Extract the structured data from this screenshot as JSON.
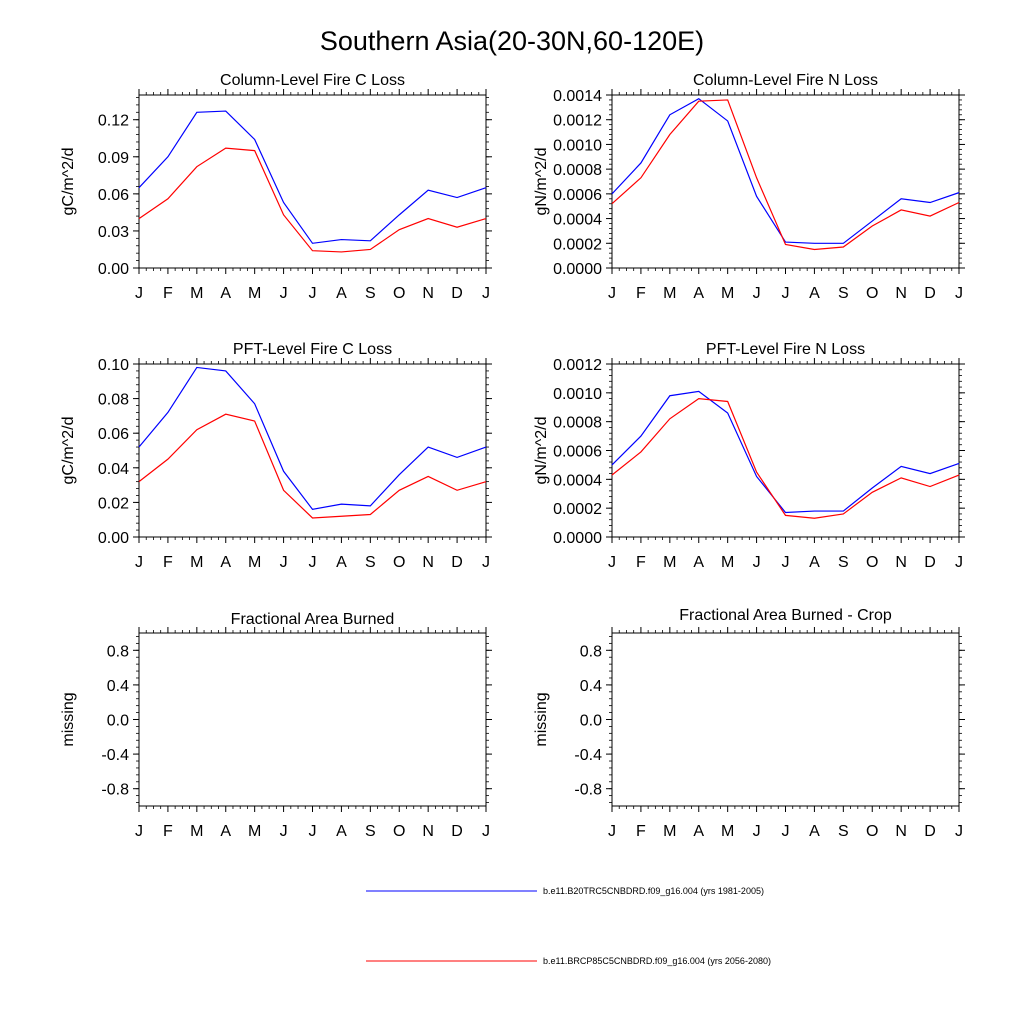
{
  "figure": {
    "title": "Southern Asia(20-30N,60-120E)"
  },
  "legend": {
    "entries": [
      {
        "label": "b.e11.B20TRC5CNBDRD.f09_g16.004 (yrs 1981-2005)",
        "color": "#0000ff"
      },
      {
        "label": "b.e11.BRCP85C5CNBDRD.f09_g16.004 (yrs 2056-2080)",
        "color": "#ff0000"
      }
    ]
  },
  "chart_data": [
    {
      "type": "line",
      "title": "Column-Level Fire C Loss",
      "ylabel": "gC/m^2/d",
      "xlabel": "",
      "categories": [
        "J",
        "F",
        "M",
        "A",
        "M",
        "J",
        "J",
        "A",
        "S",
        "O",
        "N",
        "D",
        "J"
      ],
      "ylim": [
        0,
        0.14
      ],
      "yticks": [
        "0.00",
        "0.03",
        "0.06",
        "0.09",
        "0.12"
      ],
      "yticks_values": [
        0,
        0.03,
        0.06,
        0.09,
        0.12
      ],
      "series": [
        {
          "name": "b.e11.B20TRC5CNBDRD.f09_g16.004 (yrs 1981-2005)",
          "color": "#0000ff",
          "values": [
            0.065,
            0.09,
            0.126,
            0.127,
            0.104,
            0.053,
            0.02,
            0.023,
            0.022,
            0.043,
            0.063,
            0.057,
            0.065
          ]
        },
        {
          "name": "b.e11.BRCP85C5CNBDRD.f09_g16.004 (yrs 2056-2080)",
          "color": "#ff0000",
          "values": [
            0.04,
            0.056,
            0.082,
            0.097,
            0.095,
            0.043,
            0.014,
            0.013,
            0.015,
            0.031,
            0.04,
            0.033,
            0.04
          ]
        }
      ]
    },
    {
      "type": "line",
      "title": "Column-Level Fire N Loss",
      "ylabel": "gN/m^2/d",
      "xlabel": "",
      "categories": [
        "J",
        "F",
        "M",
        "A",
        "M",
        "J",
        "J",
        "A",
        "S",
        "O",
        "N",
        "D",
        "J"
      ],
      "ylim": [
        0,
        0.0014
      ],
      "yticks": [
        "0.0000",
        "0.0002",
        "0.0004",
        "0.0006",
        "0.0008",
        "0.0010",
        "0.0012",
        "0.0014"
      ],
      "yticks_values": [
        0,
        0.0002,
        0.0004,
        0.0006,
        0.0008,
        0.001,
        0.0012,
        0.0014
      ],
      "series": [
        {
          "name": "b.e11.B20TRC5CNBDRD.f09_g16.004 (yrs 1981-2005)",
          "color": "#0000ff",
          "values": [
            0.0006,
            0.00085,
            0.00124,
            0.00137,
            0.00119,
            0.00058,
            0.00021,
            0.0002,
            0.0002,
            0.00038,
            0.00056,
            0.00053,
            0.00061
          ]
        },
        {
          "name": "b.e11.BRCP85C5CNBDRD.f09_g16.004 (yrs 2056-2080)",
          "color": "#ff0000",
          "values": [
            0.00052,
            0.00073,
            0.00108,
            0.00135,
            0.00136,
            0.00073,
            0.00019,
            0.00015,
            0.00017,
            0.00034,
            0.00047,
            0.00042,
            0.00053
          ]
        }
      ]
    },
    {
      "type": "line",
      "title": "PFT-Level Fire C Loss",
      "ylabel": "gC/m^2/d",
      "xlabel": "",
      "categories": [
        "J",
        "F",
        "M",
        "A",
        "M",
        "J",
        "J",
        "A",
        "S",
        "O",
        "N",
        "D",
        "J"
      ],
      "ylim": [
        0,
        0.1
      ],
      "yticks": [
        "0.00",
        "0.02",
        "0.04",
        "0.06",
        "0.08",
        "0.10"
      ],
      "yticks_values": [
        0,
        0.02,
        0.04,
        0.06,
        0.08,
        0.1
      ],
      "series": [
        {
          "name": "b.e11.B20TRC5CNBDRD.f09_g16.004 (yrs 1981-2005)",
          "color": "#0000ff",
          "values": [
            0.052,
            0.072,
            0.098,
            0.096,
            0.077,
            0.038,
            0.016,
            0.019,
            0.018,
            0.036,
            0.052,
            0.046,
            0.052
          ]
        },
        {
          "name": "b.e11.BRCP85C5CNBDRD.f09_g16.004 (yrs 2056-2080)",
          "color": "#ff0000",
          "values": [
            0.032,
            0.045,
            0.062,
            0.071,
            0.067,
            0.027,
            0.011,
            0.012,
            0.013,
            0.027,
            0.035,
            0.027,
            0.032
          ]
        }
      ]
    },
    {
      "type": "line",
      "title": "PFT-Level Fire N Loss",
      "ylabel": "gN/m^2/d",
      "xlabel": "",
      "categories": [
        "J",
        "F",
        "M",
        "A",
        "M",
        "J",
        "J",
        "A",
        "S",
        "O",
        "N",
        "D",
        "J"
      ],
      "ylim": [
        0,
        0.0012
      ],
      "yticks": [
        "0.0000",
        "0.0002",
        "0.0004",
        "0.0006",
        "0.0008",
        "0.0010",
        "0.0012"
      ],
      "yticks_values": [
        0,
        0.0002,
        0.0004,
        0.0006,
        0.0008,
        0.001,
        0.0012
      ],
      "series": [
        {
          "name": "b.e11.B20TRC5CNBDRD.f09_g16.004 (yrs 1981-2005)",
          "color": "#0000ff",
          "values": [
            0.0005,
            0.0007,
            0.00098,
            0.00101,
            0.00086,
            0.00042,
            0.00017,
            0.00018,
            0.00018,
            0.00034,
            0.00049,
            0.00044,
            0.00051
          ]
        },
        {
          "name": "b.e11.BRCP85C5CNBDRD.f09_g16.004 (yrs 2056-2080)",
          "color": "#ff0000",
          "values": [
            0.00043,
            0.00059,
            0.00082,
            0.00096,
            0.00094,
            0.00045,
            0.00015,
            0.00013,
            0.00016,
            0.00031,
            0.00041,
            0.00035,
            0.00043
          ]
        }
      ]
    },
    {
      "type": "line",
      "title": "Fractional Area Burned",
      "ylabel": "missing",
      "xlabel": "",
      "categories": [
        "J",
        "F",
        "M",
        "A",
        "M",
        "J",
        "J",
        "A",
        "S",
        "O",
        "N",
        "D",
        "J"
      ],
      "ylim": [
        -1,
        1
      ],
      "yticks": [
        "-0.8",
        "-0.4",
        "0.0",
        "0.4",
        "0.8"
      ],
      "yticks_values": [
        -0.8,
        -0.4,
        0.0,
        0.4,
        0.8
      ],
      "series": []
    },
    {
      "type": "line",
      "title": "Fractional Area Burned - Crop",
      "ylabel": "missing",
      "xlabel": "",
      "categories": [
        "J",
        "F",
        "M",
        "A",
        "M",
        "J",
        "J",
        "A",
        "S",
        "O",
        "N",
        "D",
        "J"
      ],
      "ylim": [
        -1,
        1
      ],
      "yticks": [
        "-0.8",
        "-0.4",
        "0.0",
        "0.4",
        "0.8"
      ],
      "yticks_values": [
        -0.8,
        -0.4,
        0.0,
        0.4,
        0.8
      ],
      "series": []
    }
  ]
}
